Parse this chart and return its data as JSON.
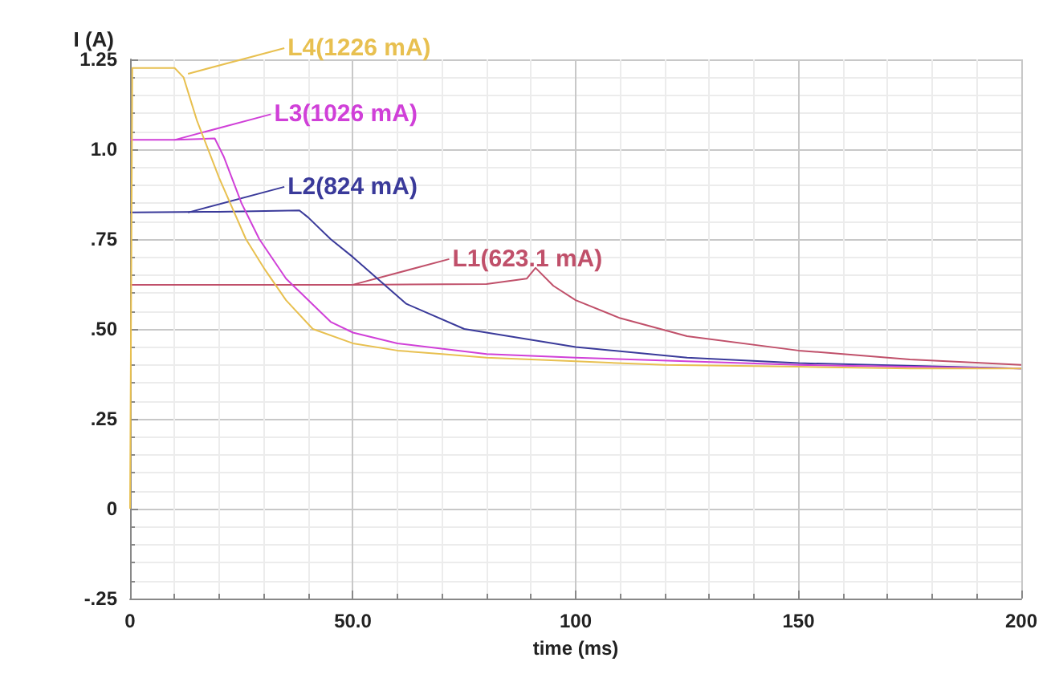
{
  "chart_data": {
    "type": "line",
    "xlabel": "time (ms)",
    "ylabel": "I (A)",
    "xlim": [
      0,
      200
    ],
    "xticks": [
      0,
      {
        "value": 50,
        "label": "50.0"
      },
      100,
      150,
      200
    ],
    "ylim": [
      -0.25,
      1.25
    ],
    "yticks": [
      {
        "value": -0.25,
        "label": "-.25"
      },
      0,
      {
        "value": 0.25,
        "label": ".25"
      },
      {
        "value": 0.5,
        "label": ".50"
      },
      {
        "value": 0.75,
        "label": ".75"
      },
      {
        "value": 1,
        "label": "1.0"
      },
      {
        "value": 1.25,
        "label": "1.25"
      }
    ],
    "grid": true,
    "marker": "none",
    "line_style": "solid",
    "series": [
      {
        "color": "#c0506a",
        "x": [
          0,
          50,
          80,
          89,
          90,
          91,
          95,
          100,
          110,
          125,
          150,
          175,
          200
        ],
        "values": [
          0.623,
          0.623,
          0.625,
          0.64,
          0.655,
          0.67,
          0.62,
          0.58,
          0.53,
          0.48,
          0.44,
          0.415,
          0.4
        ]
      },
      {
        "color": "#3a3a9a",
        "x": [
          0,
          20,
          38,
          40,
          45,
          50,
          62,
          75,
          100,
          125,
          150,
          200
        ],
        "values": [
          0.824,
          0.826,
          0.83,
          0.81,
          0.75,
          0.7,
          0.57,
          0.5,
          0.45,
          0.42,
          0.405,
          0.39
        ]
      },
      {
        "color": "#d040d8",
        "x": [
          0,
          10,
          19,
          21,
          25,
          29,
          35,
          45,
          50,
          60,
          80,
          100,
          150,
          200
        ],
        "values": [
          1.026,
          1.026,
          1.03,
          0.98,
          0.85,
          0.75,
          0.64,
          0.52,
          0.49,
          0.46,
          0.43,
          0.42,
          0.4,
          0.39
        ]
      },
      {
        "color": "#e8c050",
        "x": [
          0,
          0.5,
          10,
          12,
          15,
          20,
          26,
          30,
          35,
          41,
          50,
          60,
          70,
          80,
          100,
          120,
          150,
          175,
          200
        ],
        "values": [
          0,
          1.226,
          1.226,
          1.2,
          1.08,
          0.92,
          0.75,
          0.67,
          0.58,
          0.5,
          0.46,
          0.44,
          0.43,
          0.42,
          0.41,
          0.4,
          0.395,
          0.39,
          0.39
        ]
      }
    ],
    "annotations": [
      {
        "text": "L1(623.1 mA)",
        "x": 50,
        "y": 0.623
      },
      {
        "text": "L2(824 mA)",
        "x": 13,
        "y": 0.824
      },
      {
        "text": "L3(1026 mA)",
        "x": 10,
        "y": 1.026
      },
      {
        "text": "L4(1226 mA)",
        "x": 13,
        "y": 1.21
      }
    ]
  }
}
